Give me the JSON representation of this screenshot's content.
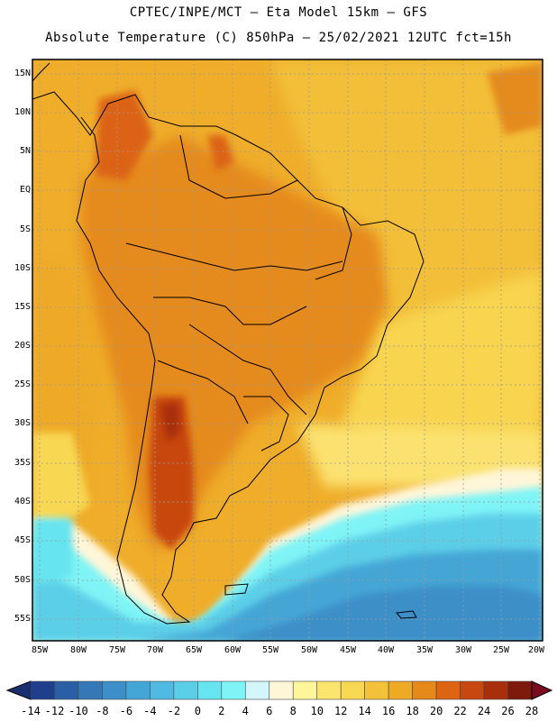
{
  "header": {
    "line1": "CPTEC/INPE/MCT —  Eta Model 15km — GFS",
    "line2": "Absolute Temperature (C) 850hPa — 25/02/2021 12UTC fct=15h"
  },
  "axes": {
    "lat_labels": [
      "15N",
      "10N",
      "5N",
      "EQ",
      "5S",
      "10S",
      "15S",
      "20S",
      "25S",
      "30S",
      "35S",
      "40S",
      "45S",
      "50S",
      "55S"
    ],
    "lon_labels": [
      "85W",
      "80W",
      "75W",
      "70W",
      "65W",
      "60W",
      "55W",
      "50W",
      "45W",
      "40W",
      "35W",
      "30W",
      "25W",
      "20W"
    ]
  },
  "colorbar": {
    "labels": [
      "-14",
      "-12",
      "-10",
      "-8",
      "-6",
      "-4",
      "-2",
      "0",
      "2",
      "4",
      "6",
      "8",
      "10",
      "12",
      "14",
      "16",
      "18",
      "20",
      "22",
      "24",
      "26",
      "28"
    ],
    "colors": [
      "#1f3f8c",
      "#2a5fa6",
      "#3478b8",
      "#3c8fc8",
      "#44a6d6",
      "#4fbbe2",
      "#5ccfe8",
      "#66e4ef",
      "#7ff4f6",
      "#d3f6fb",
      "#fff6d9",
      "#fff59a",
      "#fbe56f",
      "#f8d752",
      "#f3c23a",
      "#eeaa25",
      "#e58a1a",
      "#dc6412",
      "#c8460f",
      "#a82e0e",
      "#7e1a0b"
    ],
    "under_color": "#1a2f70",
    "over_color": "#7a0b1f"
  },
  "palette": {
    "grid": "#9a9a9a",
    "coast": "#000000"
  }
}
